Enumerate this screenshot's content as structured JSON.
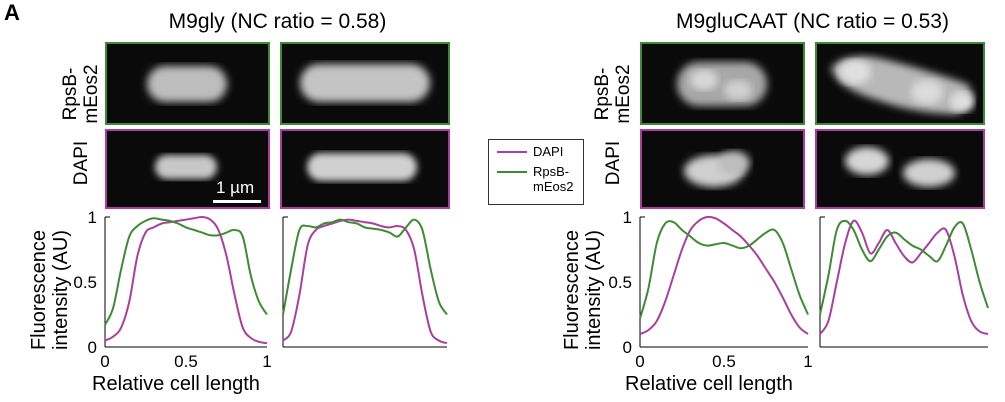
{
  "panel_label": "A",
  "colors": {
    "dapi": "#a83f9e",
    "rpsb": "#3f8a35"
  },
  "conditions": [
    {
      "title": "M9gly (NC ratio = 0.58)",
      "row_label_top": [
        "RpsB-",
        "mEos2"
      ],
      "row_label_bottom": "DAPI"
    },
    {
      "title": "M9gluCAAT (NC ratio = 0.53)",
      "row_label_top": [
        "RpsB-",
        "mEos2"
      ],
      "row_label_bottom": "DAPI"
    }
  ],
  "scale_bar_label": "1 µm",
  "legend": [
    {
      "label": "DAPI",
      "color": "#a83f9e"
    },
    {
      "label": "RpsB-\nmEos2",
      "label_lines": [
        "RpsB-",
        "mEos2"
      ],
      "color": "#3f8a35"
    }
  ],
  "axes": {
    "ylabel_lines": [
      "Fluorescence",
      "intensity (AU)"
    ],
    "xlabel": "Relative cell length",
    "y_ticks": [
      "0",
      "0.5",
      "1"
    ],
    "x_ticks": [
      "0",
      "0.5",
      "1"
    ]
  },
  "chart_data": [
    {
      "type": "line",
      "x": [
        0,
        0.05,
        0.1,
        0.15,
        0.2,
        0.25,
        0.3,
        0.35,
        0.4,
        0.45,
        0.5,
        0.55,
        0.6,
        0.65,
        0.7,
        0.75,
        0.8,
        0.85,
        0.9,
        0.95,
        1.0
      ],
      "series": [
        {
          "name": "DAPI",
          "values": [
            0.05,
            0.08,
            0.15,
            0.35,
            0.7,
            0.88,
            0.92,
            0.95,
            0.96,
            0.97,
            0.98,
            0.99,
            1.0,
            0.98,
            0.9,
            0.7,
            0.4,
            0.15,
            0.07,
            0.04,
            0.03
          ]
        },
        {
          "name": "RpsB-mEos2",
          "values": [
            0.17,
            0.3,
            0.6,
            0.85,
            0.93,
            0.97,
            0.99,
            0.98,
            0.97,
            0.95,
            0.92,
            0.9,
            0.88,
            0.86,
            0.86,
            0.88,
            0.9,
            0.85,
            0.55,
            0.35,
            0.25
          ]
        }
      ],
      "xlim": [
        0,
        1
      ],
      "ylim": [
        0,
        1
      ]
    },
    {
      "type": "line",
      "x": [
        0,
        0.05,
        0.1,
        0.15,
        0.2,
        0.25,
        0.3,
        0.35,
        0.4,
        0.45,
        0.5,
        0.55,
        0.6,
        0.65,
        0.7,
        0.75,
        0.8,
        0.85,
        0.9,
        0.95,
        1.0
      ],
      "series": [
        {
          "name": "DAPI",
          "values": [
            0.05,
            0.12,
            0.4,
            0.78,
            0.9,
            0.93,
            0.95,
            0.97,
            0.98,
            0.97,
            0.96,
            0.95,
            0.93,
            0.92,
            0.93,
            0.9,
            0.75,
            0.4,
            0.12,
            0.05,
            0.03
          ]
        },
        {
          "name": "RpsB-mEos2",
          "values": [
            0.25,
            0.6,
            0.9,
            0.93,
            0.92,
            0.95,
            0.96,
            0.98,
            0.96,
            0.95,
            0.92,
            0.91,
            0.9,
            0.88,
            0.85,
            0.92,
            0.98,
            0.9,
            0.6,
            0.35,
            0.25
          ]
        }
      ],
      "xlim": [
        0,
        1
      ],
      "ylim": [
        0,
        1
      ]
    },
    {
      "type": "line",
      "x": [
        0,
        0.05,
        0.1,
        0.15,
        0.2,
        0.25,
        0.3,
        0.35,
        0.4,
        0.45,
        0.5,
        0.55,
        0.6,
        0.65,
        0.7,
        0.75,
        0.8,
        0.85,
        0.9,
        0.95,
        1.0
      ],
      "series": [
        {
          "name": "DAPI",
          "values": [
            0.1,
            0.13,
            0.2,
            0.35,
            0.55,
            0.75,
            0.9,
            0.97,
            1.0,
            0.99,
            0.95,
            0.9,
            0.85,
            0.78,
            0.7,
            0.6,
            0.5,
            0.38,
            0.25,
            0.15,
            0.1
          ]
        },
        {
          "name": "RpsB-mEos2",
          "values": [
            0.22,
            0.45,
            0.8,
            0.95,
            0.96,
            0.9,
            0.85,
            0.8,
            0.78,
            0.79,
            0.8,
            0.78,
            0.76,
            0.78,
            0.83,
            0.88,
            0.9,
            0.8,
            0.6,
            0.4,
            0.25
          ]
        }
      ],
      "xlim": [
        0,
        1
      ],
      "ylim": [
        0,
        1
      ]
    },
    {
      "type": "line",
      "x": [
        0,
        0.05,
        0.1,
        0.15,
        0.2,
        0.25,
        0.3,
        0.35,
        0.4,
        0.45,
        0.5,
        0.55,
        0.6,
        0.65,
        0.7,
        0.75,
        0.8,
        0.85,
        0.9,
        0.95,
        1.0
      ],
      "series": [
        {
          "name": "DAPI",
          "values": [
            0.1,
            0.2,
            0.5,
            0.8,
            0.97,
            0.88,
            0.72,
            0.8,
            0.9,
            0.8,
            0.7,
            0.65,
            0.72,
            0.8,
            0.88,
            0.9,
            0.7,
            0.4,
            0.2,
            0.12,
            0.1
          ]
        },
        {
          "name": "RpsB-mEos2",
          "values": [
            0.25,
            0.55,
            0.9,
            0.97,
            0.9,
            0.75,
            0.66,
            0.75,
            0.85,
            0.88,
            0.83,
            0.78,
            0.75,
            0.7,
            0.66,
            0.78,
            0.92,
            0.95,
            0.75,
            0.5,
            0.3
          ]
        }
      ],
      "xlim": [
        0,
        1
      ],
      "ylim": [
        0,
        1
      ]
    }
  ]
}
